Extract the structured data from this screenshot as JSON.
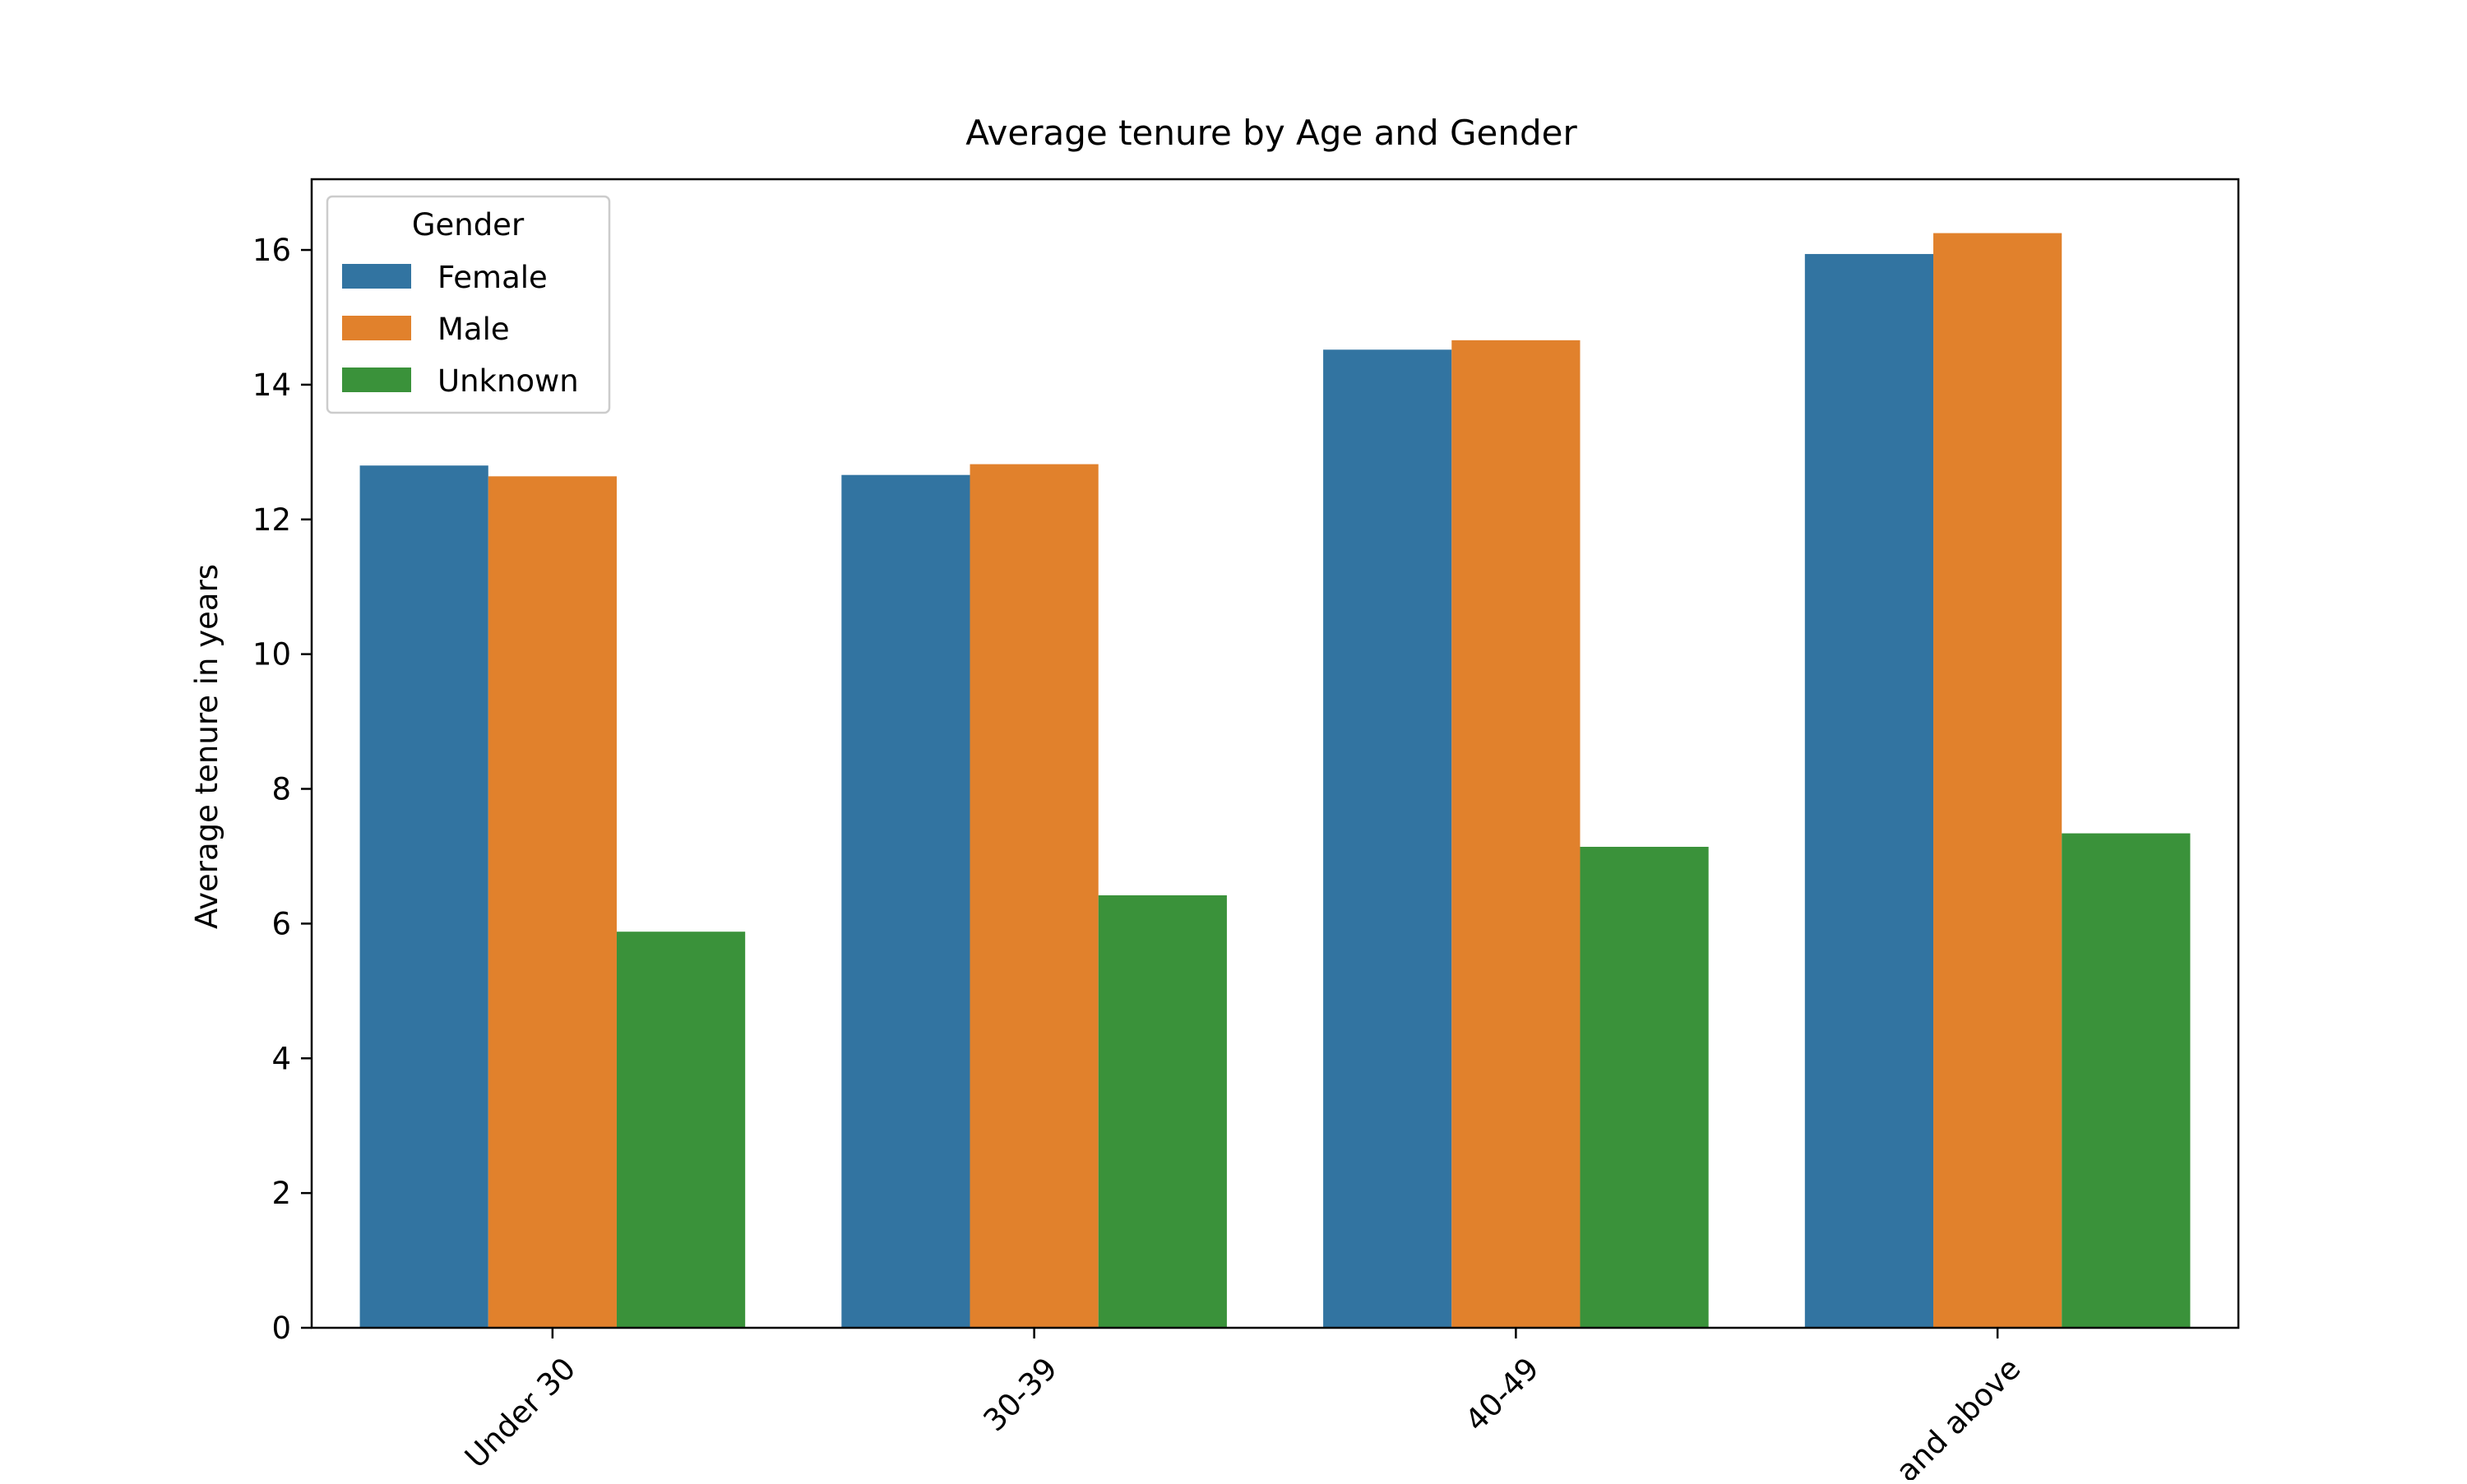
{
  "chart_data": {
    "type": "bar",
    "title": "Average tenure by Age and Gender",
    "xlabel": "",
    "ylabel": "Average tenure in years",
    "categories": [
      "Under 30",
      "30-39",
      "40-49",
      "and above"
    ],
    "ylim": [
      0,
      17.05
    ],
    "yticks": [
      0,
      2,
      4,
      6,
      8,
      10,
      12,
      14,
      16
    ],
    "grid": false,
    "legend": {
      "title": "Gender",
      "placement": "top-left"
    },
    "series": [
      {
        "name": "Female",
        "color": "#3274a1",
        "values": [
          12.8,
          12.66,
          14.52,
          15.94
        ]
      },
      {
        "name": "Male",
        "color": "#e1812c",
        "values": [
          12.64,
          12.82,
          14.66,
          16.25
        ]
      },
      {
        "name": "Unknown",
        "color": "#3a923a",
        "values": [
          5.88,
          6.42,
          7.14,
          7.34
        ]
      }
    ]
  }
}
